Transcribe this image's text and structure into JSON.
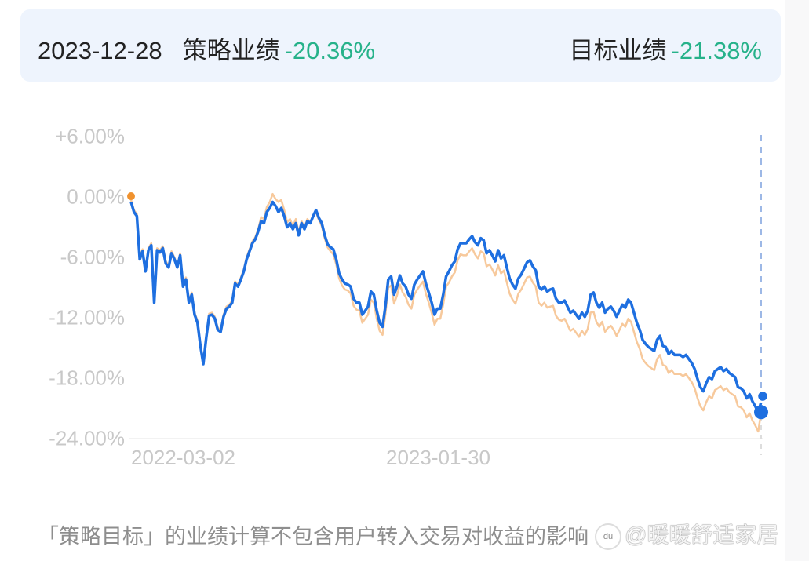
{
  "header": {
    "date": "2023-12-28",
    "strategy_label": "策略业绩",
    "strategy_value": "-20.36%",
    "target_label": "目标业绩",
    "target_value": "-21.38%"
  },
  "footnote": "「策略目标」的业绩计算不包含用户转入交易对收益的影响",
  "watermark": {
    "logo": "du",
    "text": "@暖暖舒适家居"
  },
  "colors": {
    "strategy_line": "#1e6fe0",
    "target_line": "#f7c99c",
    "start_dot": "#f0922e",
    "value_green": "#26b28a",
    "axis_text": "#c8c8c8",
    "header_bg": "#eef4fd"
  },
  "chart_data": {
    "type": "line",
    "title": "",
    "xlabel": "",
    "ylabel": "",
    "ylim": [
      -24,
      6
    ],
    "yticks": [
      "+6.00%",
      "0.00%",
      "-6.00%",
      "-12.00%",
      "-18.00%",
      "-24.00%"
    ],
    "ytick_values": [
      6,
      0,
      -6,
      -12,
      -18,
      -24
    ],
    "xticks": [
      {
        "label": "2022-03-02",
        "pos": 0.08
      },
      {
        "label": "2023-01-30",
        "pos": 0.5
      }
    ],
    "x_start_label": "",
    "x_end_label": "2023-12-28",
    "grid": false,
    "legend": "none",
    "series": [
      {
        "name": "策略业绩",
        "final": -20.36,
        "values": [
          -0.5,
          -1.5,
          -1.9,
          -6.2,
          -5.4,
          -7.4,
          -5.3,
          -4.8,
          -10.5,
          -5.3,
          -5.5,
          -5.1,
          -6.6,
          -7.0,
          -5.6,
          -6.2,
          -7.0,
          -5.8,
          -8.9,
          -8.2,
          -10.5,
          -9.7,
          -11.7,
          -12.5,
          -14.8,
          -16.6,
          -14.0,
          -11.8,
          -11.7,
          -12.1,
          -13.2,
          -13.4,
          -11.9,
          -11.1,
          -10.9,
          -10.5,
          -8.6,
          -8.9,
          -8.2,
          -7.4,
          -6.2,
          -5.4,
          -4.6,
          -4.2,
          -3.4,
          -2.4,
          -2.6,
          -1.5,
          -1.1,
          -0.5,
          -0.9,
          -1.5,
          -1.1,
          -1.9,
          -3.0,
          -2.6,
          -3.2,
          -2.6,
          -3.8,
          -2.6,
          -3.2,
          -2.4,
          -2.6,
          -1.9,
          -1.3,
          -2.1,
          -2.6,
          -3.8,
          -4.7,
          -5.0,
          -5.2,
          -6.2,
          -7.6,
          -8.2,
          -8.6,
          -8.7,
          -8.9,
          -10.1,
          -10.5,
          -10.5,
          -11.7,
          -11.3,
          -10.9,
          -9.4,
          -9.7,
          -11.3,
          -12.5,
          -12.9,
          -10.9,
          -8.2,
          -7.9,
          -9.7,
          -8.9,
          -7.8,
          -8.6,
          -8.9,
          -9.7,
          -10.1,
          -8.7,
          -8.2,
          -7.8,
          -7.4,
          -8.6,
          -9.5,
          -10.5,
          -11.7,
          -11.1,
          -11.1,
          -9.7,
          -7.9,
          -7.4,
          -6.8,
          -6.4,
          -5.2,
          -4.6,
          -4.6,
          -4.6,
          -4.2,
          -3.9,
          -4.5,
          -4.8,
          -4.1,
          -4.3,
          -5.6,
          -5.3,
          -5.8,
          -6.4,
          -5.3,
          -6.1,
          -5.8,
          -7.0,
          -8.1,
          -8.7,
          -9.1,
          -8.1,
          -7.7,
          -7.1,
          -6.5,
          -6.3,
          -6.9,
          -7.3,
          -8.9,
          -9.2,
          -8.9,
          -9.4,
          -9.2,
          -9.1,
          -10.1,
          -10.5,
          -10.5,
          -10.3,
          -10.9,
          -11.5,
          -11.3,
          -11.7,
          -12.1,
          -11.5,
          -11.9,
          -11.3,
          -9.7,
          -9.5,
          -10.5,
          -11.0,
          -10.5,
          -11.5,
          -11.1,
          -10.9,
          -11.3,
          -11.9,
          -11.3,
          -10.7,
          -11.0,
          -10.2,
          -10.5,
          -11.5,
          -12.5,
          -13.2,
          -14.2,
          -14.6,
          -14.9,
          -15.1,
          -15.3,
          -14.2,
          -13.8,
          -14.8,
          -14.9,
          -15.6,
          -15.3,
          -15.7,
          -15.7,
          -15.7,
          -15.9,
          -15.7,
          -16.1,
          -16.5,
          -17.1,
          -18.1,
          -18.9,
          -19.3,
          -18.5,
          -17.9,
          -18.1,
          -17.3,
          -17.1,
          -16.9,
          -17.3,
          -17.1,
          -17.5,
          -17.7,
          -17.9,
          -18.9,
          -19.0,
          -19.3,
          -20.0,
          -19.6,
          -20.3,
          -20.8,
          -21.4,
          -20.36
        ]
      },
      {
        "name": "目标业绩",
        "final": -21.38,
        "offsets_note": "target tracks strategy with a gradually widening lower offset",
        "values": [
          -0.3,
          -1.3,
          -1.7,
          -6.0,
          -5.2,
          -7.2,
          -5.1,
          -4.6,
          -10.3,
          -5.1,
          -5.3,
          -4.9,
          -6.4,
          -6.8,
          -5.4,
          -6.0,
          -6.8,
          -5.6,
          -8.7,
          -8.0,
          -10.3,
          -9.5,
          -11.5,
          -12.3,
          -14.6,
          -16.4,
          -13.8,
          -11.6,
          -11.5,
          -11.9,
          -13.0,
          -13.2,
          -11.7,
          -10.9,
          -10.7,
          -10.3,
          -8.4,
          -8.7,
          -8.0,
          -7.2,
          -6.0,
          -5.2,
          -4.4,
          -4.0,
          -3.2,
          -2.0,
          -2.2,
          -1.0,
          -0.5,
          0.3,
          -0.2,
          -0.5,
          -0.3,
          -1.3,
          -2.5,
          -2.2,
          -2.9,
          -2.2,
          -3.5,
          -2.4,
          -3.0,
          -2.2,
          -2.5,
          -1.9,
          -1.5,
          -2.3,
          -2.9,
          -4.1,
          -5.0,
          -5.4,
          -5.7,
          -6.7,
          -8.1,
          -8.8,
          -9.2,
          -9.3,
          -9.6,
          -10.8,
          -11.2,
          -11.3,
          -12.5,
          -12.1,
          -11.7,
          -10.2,
          -10.5,
          -12.1,
          -13.3,
          -13.7,
          -11.7,
          -9.0,
          -8.8,
          -10.6,
          -9.8,
          -8.7,
          -9.5,
          -9.9,
          -10.7,
          -11.1,
          -9.7,
          -9.2,
          -8.8,
          -8.4,
          -9.6,
          -10.5,
          -11.5,
          -12.7,
          -12.1,
          -12.1,
          -10.7,
          -8.9,
          -8.5,
          -7.9,
          -7.5,
          -6.3,
          -5.7,
          -5.8,
          -5.8,
          -5.4,
          -5.1,
          -5.7,
          -6.1,
          -5.4,
          -5.6,
          -6.9,
          -6.7,
          -7.2,
          -7.8,
          -6.8,
          -7.6,
          -7.3,
          -8.5,
          -9.6,
          -10.2,
          -10.6,
          -9.6,
          -9.2,
          -8.6,
          -8.0,
          -7.9,
          -8.5,
          -8.9,
          -10.5,
          -10.8,
          -10.5,
          -11.0,
          -10.9,
          -10.8,
          -11.8,
          -12.2,
          -12.3,
          -12.1,
          -12.7,
          -13.3,
          -13.1,
          -13.5,
          -13.9,
          -13.3,
          -13.7,
          -13.1,
          -11.5,
          -11.4,
          -12.4,
          -12.9,
          -12.4,
          -13.4,
          -13.0,
          -12.8,
          -13.2,
          -13.8,
          -13.2,
          -12.6,
          -12.9,
          -12.1,
          -12.4,
          -13.4,
          -14.4,
          -15.1,
          -16.1,
          -16.5,
          -16.8,
          -17.0,
          -17.2,
          -16.1,
          -15.7,
          -16.7,
          -16.8,
          -17.5,
          -17.2,
          -17.6,
          -17.6,
          -17.6,
          -17.8,
          -17.6,
          -18.0,
          -18.4,
          -19.0,
          -20.0,
          -20.8,
          -21.2,
          -20.4,
          -19.8,
          -20.0,
          -19.2,
          -19.0,
          -18.8,
          -19.2,
          -19.0,
          -19.4,
          -19.6,
          -19.8,
          -20.8,
          -20.9,
          -21.2,
          -21.9,
          -21.5,
          -22.2,
          -22.7,
          -23.3,
          -21.38
        ]
      }
    ]
  }
}
